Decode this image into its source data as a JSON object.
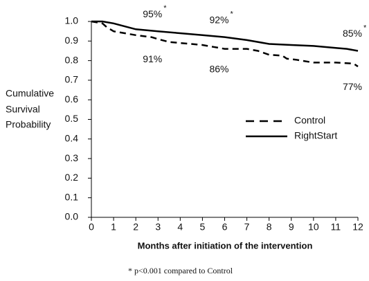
{
  "chart_data": {
    "type": "line",
    "xlabel": "Months after initiation of the intervention",
    "ylabel": [
      "Cumulative",
      "Survival",
      "Probability"
    ],
    "footnote": "* p<0.001 compared to Control",
    "xlim": [
      0,
      12
    ],
    "xticks": [
      0,
      1,
      2,
      3,
      4,
      5,
      6,
      7,
      8,
      9,
      10,
      11,
      12
    ],
    "ylim": [
      0,
      1
    ],
    "yticks": [
      {
        "value": 0,
        "label": "0.0"
      },
      0.1,
      0.2,
      0.3,
      0.4,
      0.5,
      0.6,
      0.7,
      0.8,
      0.9,
      {
        "value": 1,
        "label": "1.0"
      }
    ],
    "legend": "center-right",
    "series": [
      {
        "name": "Control",
        "color": "#000000",
        "dash": "dashed",
        "x": [
          0,
          0.5,
          0.7,
          1,
          2,
          2.7,
          3,
          3.5,
          4,
          5,
          5.5,
          6,
          7,
          7.5,
          8,
          8.6,
          8.8,
          9.2,
          10,
          11,
          11.8,
          12
        ],
        "values": [
          1.0,
          0.99,
          0.97,
          0.95,
          0.93,
          0.92,
          0.91,
          0.895,
          0.89,
          0.88,
          0.87,
          0.86,
          0.86,
          0.85,
          0.83,
          0.825,
          0.81,
          0.805,
          0.79,
          0.79,
          0.785,
          0.77
        ],
        "value_labels": [
          null,
          null,
          null,
          null,
          null,
          null,
          "91%",
          null,
          null,
          null,
          null,
          "86%",
          null,
          null,
          null,
          null,
          null,
          null,
          null,
          null,
          null,
          "77%"
        ]
      },
      {
        "name": "RightStart",
        "color": "#000000",
        "dash": "solid",
        "label_mark": "*",
        "x": [
          0,
          0.5,
          1,
          1.5,
          2,
          3,
          4,
          5,
          6,
          7,
          8,
          9,
          10,
          11,
          11.5,
          12
        ],
        "values": [
          1.0,
          1.0,
          0.99,
          0.975,
          0.96,
          0.95,
          0.94,
          0.93,
          0.92,
          0.905,
          0.885,
          0.88,
          0.875,
          0.865,
          0.86,
          0.85
        ],
        "value_labels": [
          null,
          null,
          null,
          null,
          null,
          "95%",
          null,
          null,
          "92%",
          null,
          null,
          null,
          null,
          null,
          null,
          "85%"
        ]
      }
    ]
  }
}
